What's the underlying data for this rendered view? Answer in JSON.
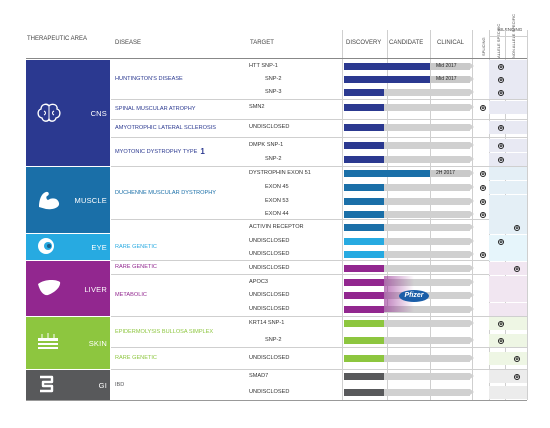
{
  "headers": {
    "therapeutic_area": "THERAPEUTIC AREA",
    "disease": "DISEASE",
    "target": "TARGET",
    "discovery": "DISCOVERY",
    "candidate": "CANDIDATE",
    "clinical": "CLINICAL",
    "splicing": "SPLICING",
    "silencing": "SILENCING",
    "allele_specific": "ALLELE SPECIFIC",
    "non_allele_specific": "NON ALLELE SPECIFIC"
  },
  "areas": [
    {
      "label": "CNS",
      "color": "#2b3990",
      "icon": "brain-icon"
    },
    {
      "label": "MUSCLE",
      "color": "#1a6fa8",
      "icon": "arm-muscle-icon"
    },
    {
      "label": "EYE",
      "color": "#27aae1",
      "icon": "eye-icon"
    },
    {
      "label": "LIVER",
      "color": "#92278f",
      "icon": "liver-icon"
    },
    {
      "label": "SKIN",
      "color": "#8dc63f",
      "icon": "skin-layers-icon"
    },
    {
      "label": "GI",
      "color": "#58595b",
      "icon": "intestine-icon"
    }
  ],
  "diseases": [
    {
      "name": "HUNTINGTON'S DISEASE",
      "tail": "",
      "color": "#2b3990"
    },
    {
      "name": "SPINAL MUSCULAR ATROPHY",
      "tail": "",
      "color": "#2b3990"
    },
    {
      "name": "AMYOTROPHIC LATERAL SCLEROSIS",
      "tail": "",
      "color": "#2b3990"
    },
    {
      "name": "MYOTONIC DYSTROPHY TYPE",
      "tail": "1",
      "color": "#2b3990"
    },
    {
      "name": "DUCHENNE MUSCULAR DYSTROPHY",
      "tail": "",
      "color": "#1a6fa8"
    },
    {
      "name": "RARE GENETIC",
      "tail": "",
      "color": "#27aae1"
    },
    {
      "name": "RARE GENETIC",
      "tail": "",
      "color": "#92278f"
    },
    {
      "name": "METABOLIC",
      "tail": "",
      "color": "#92278f"
    },
    {
      "name": "EPIDERMOLYSIS BULLOSA SIMPLEX",
      "tail": "",
      "color": "#8dc63f"
    },
    {
      "name": "RARE GENETIC",
      "tail": "",
      "color": "#8dc63f"
    },
    {
      "name": "IBD",
      "tail": "",
      "color": "#58595b"
    }
  ],
  "rows": [
    {
      "target": "HTT SNP-1",
      "discovery": 1,
      "candidate": 1,
      "clinical": 0,
      "milestone": "Mid 2017",
      "splicing": false,
      "allele": true,
      "non_allele": false
    },
    {
      "target": "SNP-2",
      "discovery": 1,
      "candidate": 1,
      "clinical": 0,
      "milestone": "Mid 2017",
      "splicing": false,
      "allele": true,
      "non_allele": false
    },
    {
      "target": "SNP-3",
      "discovery": 1,
      "candidate": 0,
      "clinical": 0,
      "milestone": "",
      "splicing": false,
      "allele": true,
      "non_allele": false
    },
    {
      "target": "SMN2",
      "discovery": 1,
      "candidate": 0,
      "clinical": 0,
      "milestone": "",
      "splicing": true,
      "allele": false,
      "non_allele": false
    },
    {
      "target": "UNDISCLOSED",
      "discovery": 1,
      "candidate": 0,
      "clinical": 0,
      "milestone": "",
      "splicing": false,
      "allele": true,
      "non_allele": false
    },
    {
      "target": "DMPK SNP-1",
      "discovery": 1,
      "candidate": 0,
      "clinical": 0,
      "milestone": "",
      "splicing": false,
      "allele": true,
      "non_allele": false
    },
    {
      "target": "SNP-2",
      "discovery": 1,
      "candidate": 0,
      "clinical": 0,
      "milestone": "",
      "splicing": false,
      "allele": true,
      "non_allele": false
    },
    {
      "target": "DYSTROPHIN EXON 51",
      "discovery": 1,
      "candidate": 1,
      "clinical": 0,
      "milestone": "2H 2017",
      "splicing": true,
      "allele": false,
      "non_allele": false
    },
    {
      "target": "EXON 45",
      "discovery": 1,
      "candidate": 0,
      "clinical": 0,
      "milestone": "",
      "splicing": true,
      "allele": false,
      "non_allele": false
    },
    {
      "target": "EXON 53",
      "discovery": 1,
      "candidate": 0,
      "clinical": 0,
      "milestone": "",
      "splicing": true,
      "allele": false,
      "non_allele": false
    },
    {
      "target": "EXON 44",
      "discovery": 1,
      "candidate": 0,
      "clinical": 0,
      "milestone": "",
      "splicing": true,
      "allele": false,
      "non_allele": false
    },
    {
      "target": "ACTIVIN RECEPTOR",
      "discovery": 1,
      "candidate": 0,
      "clinical": 0,
      "milestone": "",
      "splicing": false,
      "allele": false,
      "non_allele": true
    },
    {
      "target": "UNDISCLOSED",
      "discovery": 1,
      "candidate": 0,
      "clinical": 0,
      "milestone": "",
      "splicing": false,
      "allele": true,
      "non_allele": false
    },
    {
      "target": "UNDISCLOSED",
      "discovery": 1,
      "candidate": 0,
      "clinical": 0,
      "milestone": "",
      "splicing": true,
      "allele": false,
      "non_allele": false
    },
    {
      "target": "UNDISCLOSED",
      "discovery": 1,
      "candidate": 0,
      "clinical": 0,
      "milestone": "",
      "splicing": false,
      "allele": false,
      "non_allele": true
    },
    {
      "target": "APOC3",
      "discovery": 1,
      "candidate": 0,
      "clinical": 0,
      "milestone": "",
      "splicing": false,
      "allele": false,
      "non_allele": false
    },
    {
      "target": "UNDISCLOSED",
      "discovery": 1,
      "candidate": 0,
      "clinical": 0,
      "milestone": "",
      "splicing": false,
      "allele": false,
      "non_allele": false
    },
    {
      "target": "UNDISCLOSED",
      "discovery": 1,
      "candidate": 0,
      "clinical": 0,
      "milestone": "",
      "splicing": false,
      "allele": false,
      "non_allele": false
    },
    {
      "target": "KRT14 SNP-1",
      "discovery": 1,
      "candidate": 0,
      "clinical": 0,
      "milestone": "",
      "splicing": false,
      "allele": true,
      "non_allele": false
    },
    {
      "target": "SNP-2",
      "discovery": 1,
      "candidate": 0,
      "clinical": 0,
      "milestone": "",
      "splicing": false,
      "allele": true,
      "non_allele": false
    },
    {
      "target": "UNDISCLOSED",
      "discovery": 1,
      "candidate": 0,
      "clinical": 0,
      "milestone": "",
      "splicing": false,
      "allele": false,
      "non_allele": true
    },
    {
      "target": "SMAD7",
      "discovery": 1,
      "candidate": 0,
      "clinical": 0,
      "milestone": "",
      "splicing": false,
      "allele": false,
      "non_allele": true
    },
    {
      "target": "UNDISCLOSED",
      "discovery": 1,
      "candidate": 0,
      "clinical": 0,
      "milestone": "",
      "splicing": false,
      "allele": false,
      "non_allele": false
    }
  ],
  "partner": {
    "name": "Pfizer",
    "color": "#1a5ea8"
  },
  "check_symbol": "⊗"
}
